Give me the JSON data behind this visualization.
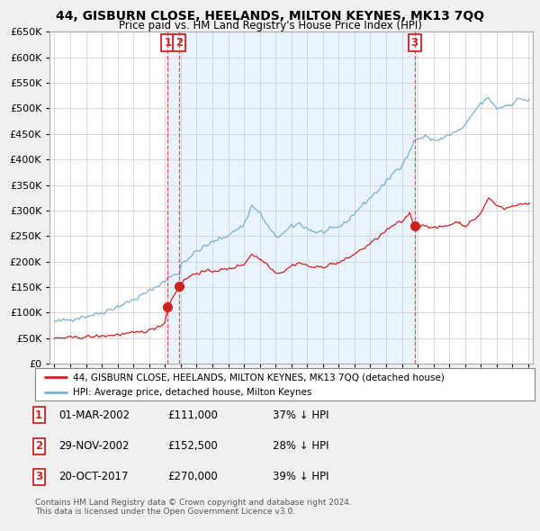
{
  "title": "44, GISBURN CLOSE, HEELANDS, MILTON KEYNES, MK13 7QQ",
  "subtitle": "Price paid vs. HM Land Registry's House Price Index (HPI)",
  "legend_line1": "44, GISBURN CLOSE, HEELANDS, MILTON KEYNES, MK13 7QQ (detached house)",
  "legend_line2": "HPI: Average price, detached house, Milton Keynes",
  "footer_line1": "Contains HM Land Registry data © Crown copyright and database right 2024.",
  "footer_line2": "This data is licensed under the Open Government Licence v3.0.",
  "transactions": [
    {
      "num": "1",
      "date": "01-MAR-2002",
      "price": "£111,000",
      "pct": "37% ↓ HPI",
      "x_year": 2002.17
    },
    {
      "num": "2",
      "date": "29-NOV-2002",
      "price": "£152,500",
      "pct": "28% ↓ HPI",
      "x_year": 2002.92
    },
    {
      "num": "3",
      "date": "20-OCT-2017",
      "price": "£270,000",
      "pct": "39% ↓ HPI",
      "x_year": 2017.8
    }
  ],
  "vline1_x": 2002.17,
  "vline2_x": 2002.92,
  "vline3_x": 2017.8,
  "shade_color": "#ddeeff",
  "ylim": [
    0,
    650000
  ],
  "yticks": [
    0,
    50000,
    100000,
    150000,
    200000,
    250000,
    300000,
    350000,
    400000,
    450000,
    500000,
    550000,
    600000,
    650000
  ],
  "xlim_start": 1994.7,
  "xlim_end": 2025.3,
  "background_color": "#f0f0f0",
  "plot_bg_color": "#ffffff",
  "grid_color": "#cccccc",
  "hpi_color": "#7ab0d4",
  "price_color": "#cc2222",
  "vline_color": "#dd3333",
  "box_color": "#cc2222"
}
